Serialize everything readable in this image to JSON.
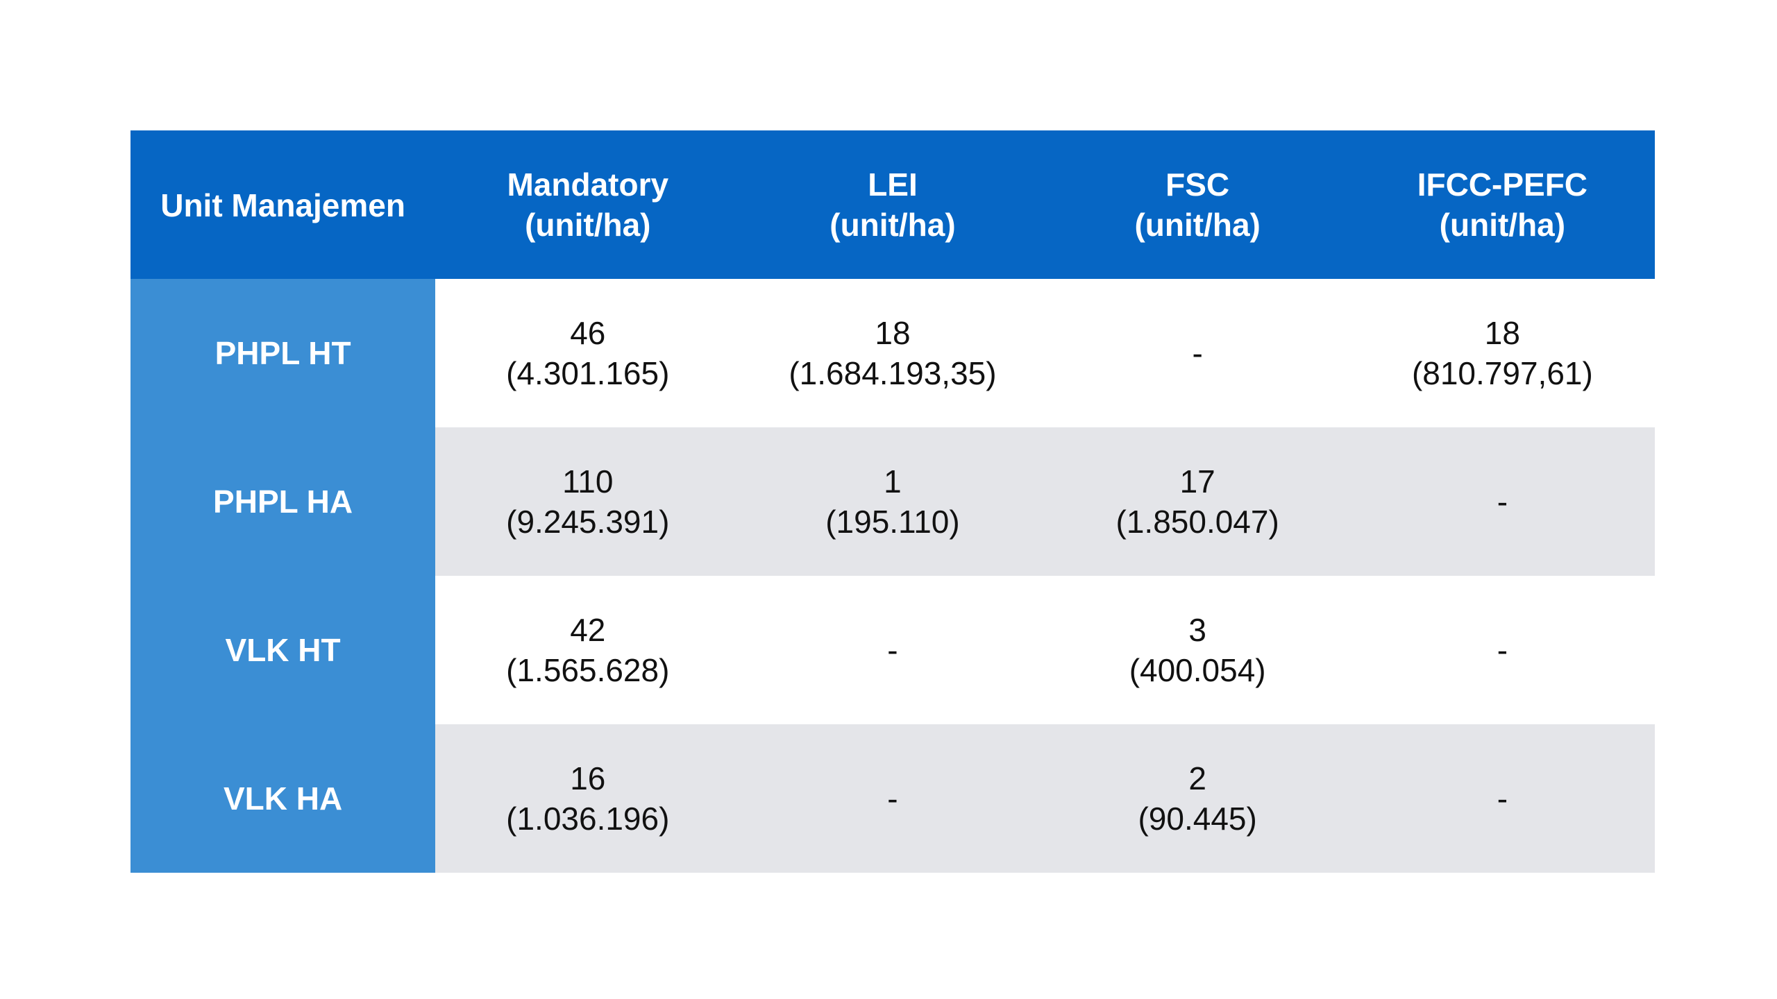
{
  "table": {
    "header": {
      "unit": "Unit Manajemen",
      "columns": [
        {
          "name": "Mandatory",
          "unit": "(unit/ha)"
        },
        {
          "name": "LEI",
          "unit": "(unit/ha)"
        },
        {
          "name": "FSC",
          "unit": "(unit/ha)"
        },
        {
          "name": "IFCC-PEFC",
          "unit": "(unit/ha)"
        }
      ]
    },
    "rows": [
      {
        "label": "PHPL HT",
        "cells": [
          {
            "count": "46",
            "area": "(4.301.165)"
          },
          {
            "count": "18",
            "area": "(1.684.193,35)"
          },
          {
            "count": "-",
            "area": ""
          },
          {
            "count": "18",
            "area": "(810.797,61)"
          }
        ]
      },
      {
        "label": "PHPL HA",
        "cells": [
          {
            "count": "110",
            "area": "(9.245.391)"
          },
          {
            "count": "1",
            "area": "(195.110)"
          },
          {
            "count": "17",
            "area": "(1.850.047)"
          },
          {
            "count": "-",
            "area": ""
          }
        ]
      },
      {
        "label": "VLK HT",
        "cells": [
          {
            "count": "42",
            "area": "(1.565.628)"
          },
          {
            "count": "-",
            "area": ""
          },
          {
            "count": "3",
            "area": "(400.054)"
          },
          {
            "count": "-",
            "area": ""
          }
        ]
      },
      {
        "label": "VLK HA",
        "cells": [
          {
            "count": "16",
            "area": "(1.036.196)"
          },
          {
            "count": "-",
            "area": ""
          },
          {
            "count": "2",
            "area": "(90.445)"
          },
          {
            "count": "-",
            "area": ""
          }
        ]
      }
    ]
  },
  "colors": {
    "header_bg": "#0666c4",
    "row_label_bg": "#3b8ed4",
    "row_alt_bg": "#e4e5e9",
    "row_bg": "#ffffff"
  }
}
